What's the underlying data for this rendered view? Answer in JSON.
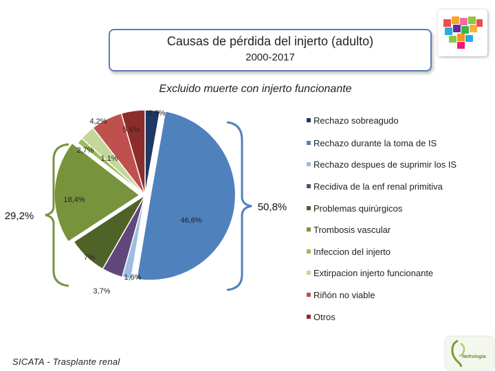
{
  "header": {
    "title": "Causas de pérdida del injerto (adulto)",
    "subtitle": "2000-2017",
    "exclusion_note": "Excluido muerte con injerto funcionante"
  },
  "chart_data": {
    "type": "pie",
    "start_angle_deg": 0,
    "slices": [
      {
        "label": "Rechazo sobreagudo",
        "value": 2.6,
        "data_label": "2,6%",
        "color": "#1f3864"
      },
      {
        "label": "Rechazo durante la toma de IS",
        "value": 46.6,
        "data_label": "46,6%",
        "color": "#4f81bd"
      },
      {
        "label": "Rechazo despues de suprimir los IS",
        "value": 1.6,
        "data_label": "1,6%",
        "color": "#9bbde0"
      },
      {
        "label": "Recidiva de la enf renal primitiva",
        "value": 3.7,
        "data_label": "3,7%",
        "color": "#60497a"
      },
      {
        "label": "Problemas quirúrgicos",
        "value": 7.0,
        "data_label": "7%",
        "color": "#4f6228"
      },
      {
        "label": "Trombosis vascular",
        "value": 18.4,
        "data_label": "18,4%",
        "color": "#77933c"
      },
      {
        "label": "Infeccion del injerto",
        "value": 1.1,
        "data_label": "1,1%",
        "color": "#9bbb59"
      },
      {
        "label": "Extirpacion injerto funcionante",
        "value": 2.7,
        "data_label": "2,7%",
        "color": "#c4d79b"
      },
      {
        "label": "Riñón no viable",
        "value": 5.6,
        "data_label": "5,6%",
        "color": "#c0504d"
      },
      {
        "label": "Otros",
        "value": 4.2,
        "data_label": "4,2%",
        "color": "#8b2d2a"
      }
    ],
    "group_brackets": [
      {
        "label": "50,8%",
        "side": "right"
      },
      {
        "label": "29,2%",
        "side": "left"
      }
    ],
    "legend_position": "right"
  },
  "footer": {
    "source": "SICATA - Trasplante renal"
  },
  "logos": {
    "bottom_right_text": "Nefrologia"
  }
}
